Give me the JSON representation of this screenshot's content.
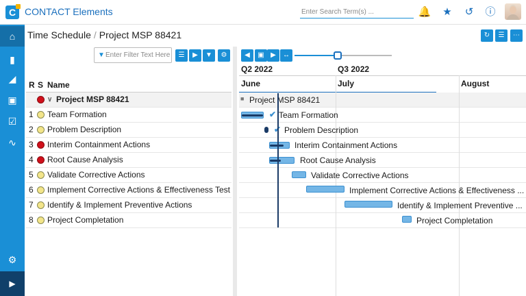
{
  "app": {
    "title": "CONTACT Elements",
    "logo_letter": "C"
  },
  "search": {
    "placeholder": "Enter Search Term(s) ..."
  },
  "top_icons": [
    "bell-icon",
    "star-icon",
    "history-icon",
    "info-icon"
  ],
  "breadcrumb": {
    "section": "Time Schedule",
    "separator": "/",
    "page": "Project MSP 88421"
  },
  "filter": {
    "placeholder": "Enter Filter Text Here"
  },
  "table": {
    "headers": {
      "r": "R",
      "s": "S",
      "name": "Name"
    },
    "project_row": {
      "status": "red",
      "name": "Project MSP 88421"
    },
    "rows": [
      {
        "r": "1",
        "status": "yellow",
        "name": "Team Formation"
      },
      {
        "r": "2",
        "status": "yellow",
        "name": "Problem Description"
      },
      {
        "r": "3",
        "status": "red",
        "name": "Interim Containment Actions"
      },
      {
        "r": "4",
        "status": "red",
        "name": "Root Cause Analysis"
      },
      {
        "r": "5",
        "status": "yellow",
        "name": "Validate Corrective Actions"
      },
      {
        "r": "6",
        "status": "yellow",
        "name": "Implement Corrective Actions & Effectiveness Test"
      },
      {
        "r": "7",
        "status": "yellow",
        "name": "Identify & Implement Preventive Actions"
      },
      {
        "r": "8",
        "status": "yellow",
        "name": "Project Completation"
      }
    ]
  },
  "gantt": {
    "quarters": [
      "Q2 2022",
      "Q3 2022"
    ],
    "months": [
      "June",
      "July",
      "August"
    ],
    "project_label": "Project MSP 88421",
    "task_labels": [
      "Team Formation",
      "Problem Description",
      "Interim Containment Actions",
      "Root Cause Analysis",
      "Validate Corrective Actions",
      "Implement Corrective Actions & Effectiveness ...",
      "Identify & Implement Preventive ...",
      "Project Completation"
    ]
  },
  "colors": {
    "accent": "#1a8fd6",
    "status_red": "#d0101b",
    "status_yellow": "#f3e58a"
  }
}
